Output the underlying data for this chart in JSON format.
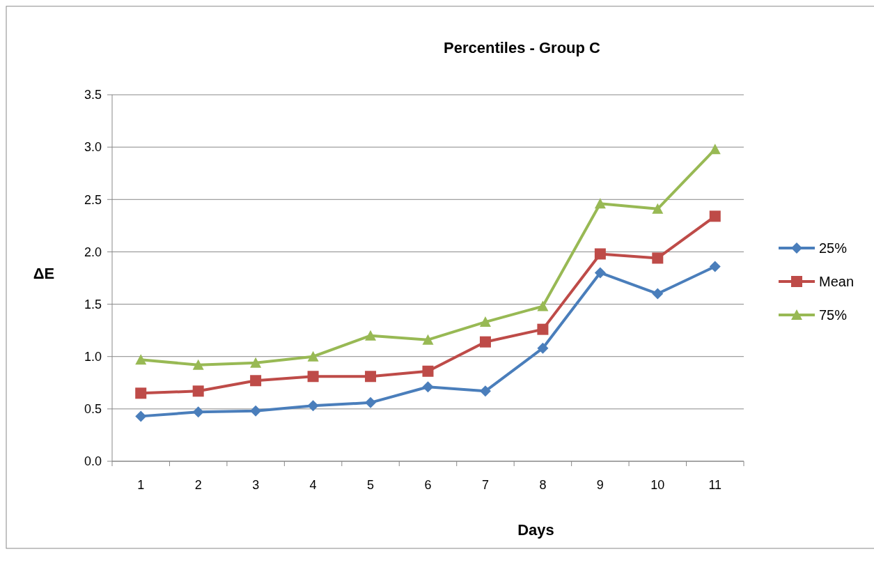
{
  "chart_data": {
    "type": "line",
    "title": "Percentiles - Group C",
    "xlabel": "Days",
    "ylabel": "ΔE",
    "categories": [
      "1",
      "2",
      "3",
      "4",
      "5",
      "6",
      "7",
      "8",
      "9",
      "10",
      "11"
    ],
    "series": [
      {
        "name": "25%",
        "color": "#4a7ebb",
        "marker": "diamond",
        "values": [
          0.43,
          0.47,
          0.48,
          0.53,
          0.56,
          0.71,
          0.67,
          1.08,
          1.8,
          1.6,
          1.86
        ]
      },
      {
        "name": "Mean",
        "color": "#be4b48",
        "marker": "square",
        "values": [
          0.65,
          0.67,
          0.77,
          0.81,
          0.81,
          0.86,
          1.14,
          1.26,
          1.98,
          1.94,
          2.34
        ]
      },
      {
        "name": "75%",
        "color": "#98b954",
        "marker": "triangle",
        "values": [
          0.97,
          0.92,
          0.94,
          1.0,
          1.2,
          1.16,
          1.33,
          1.48,
          2.46,
          2.41,
          2.98
        ]
      }
    ],
    "ylim": [
      0,
      3.5
    ],
    "yticks": [
      {
        "value": 0,
        "label": "0.0"
      },
      {
        "value": 0.5,
        "label": "0.5"
      },
      {
        "value": 1,
        "label": "1.0"
      },
      {
        "value": 1.5,
        "label": "1.5"
      },
      {
        "value": 2,
        "label": "2.0"
      },
      {
        "value": 2.5,
        "label": "2.5"
      },
      {
        "value": 3,
        "label": "3.0"
      },
      {
        "value": 3.5,
        "label": "3.5"
      }
    ],
    "grid": "y",
    "legend": "right"
  }
}
